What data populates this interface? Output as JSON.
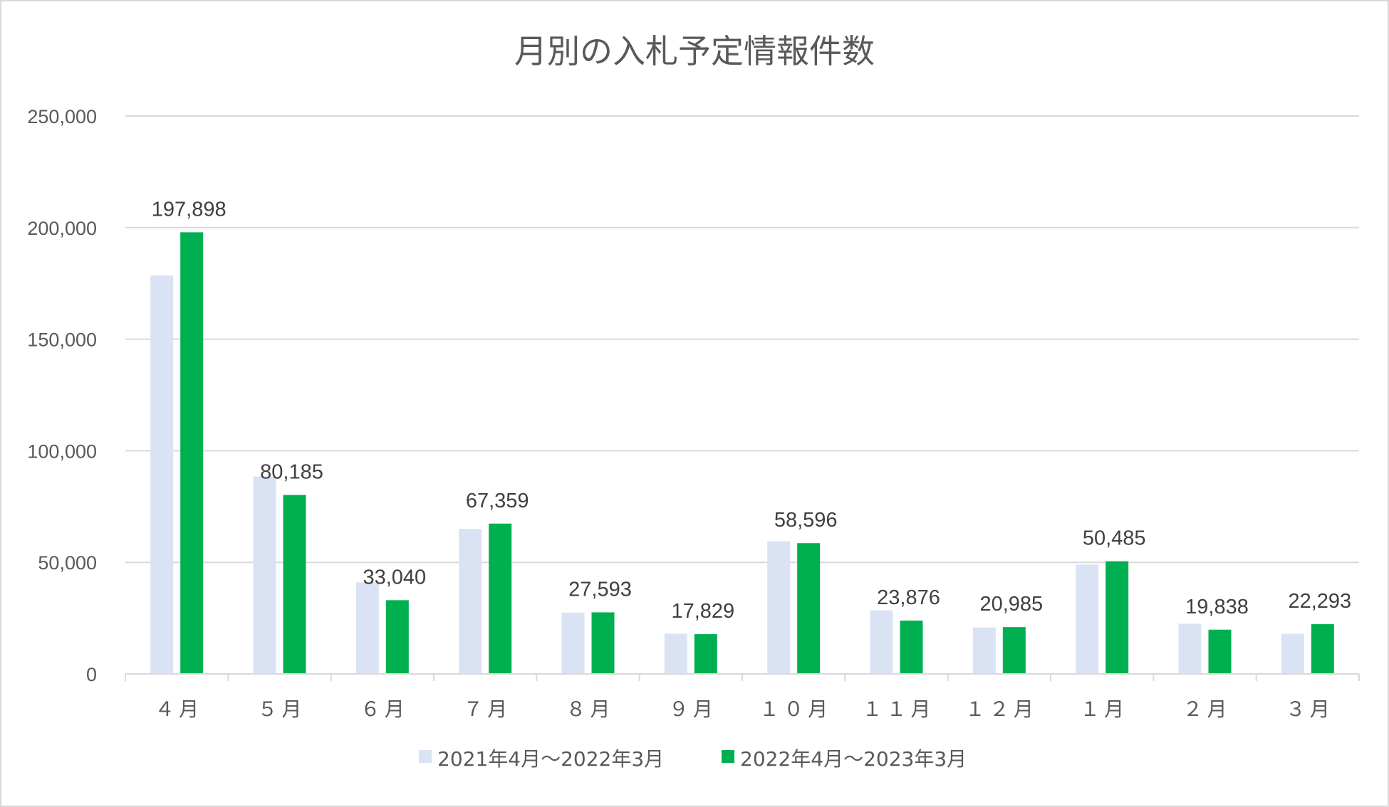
{
  "chart_data": {
    "type": "bar",
    "title": "月別の入札予定情報件数",
    "xlabel": "",
    "ylabel": "",
    "categories": [
      "４月",
      "５月",
      "６月",
      "７月",
      "８月",
      "９月",
      "１０月",
      "１１月",
      "１２月",
      "１月",
      "２月",
      "３月"
    ],
    "series": [
      {
        "name": "2021年4月～2022年3月",
        "color": "#dae3f3",
        "values": [
          178500,
          88500,
          41000,
          65000,
          27500,
          18000,
          59500,
          28500,
          20800,
          49000,
          22500,
          18000
        ],
        "labels": []
      },
      {
        "name": "2022年4月～2023年3月",
        "color": "#00b050",
        "values": [
          197898,
          80185,
          33040,
          67359,
          27593,
          17829,
          58596,
          23876,
          20985,
          50485,
          19838,
          22293
        ],
        "labels": [
          "197,898",
          "80,185",
          "33,040",
          "67,359",
          "27,593",
          "17,829",
          "58,596",
          "23,876",
          "20,985",
          "50,485",
          "19,838",
          "22,293"
        ]
      }
    ],
    "ylim": [
      0,
      250000
    ],
    "yticks": [
      0,
      50000,
      100000,
      150000,
      200000,
      250000
    ],
    "ytick_labels": [
      "0",
      "50,000",
      "100,000",
      "150,000",
      "200,000",
      "250,000"
    ],
    "grid": true,
    "legend_position": "bottom"
  }
}
